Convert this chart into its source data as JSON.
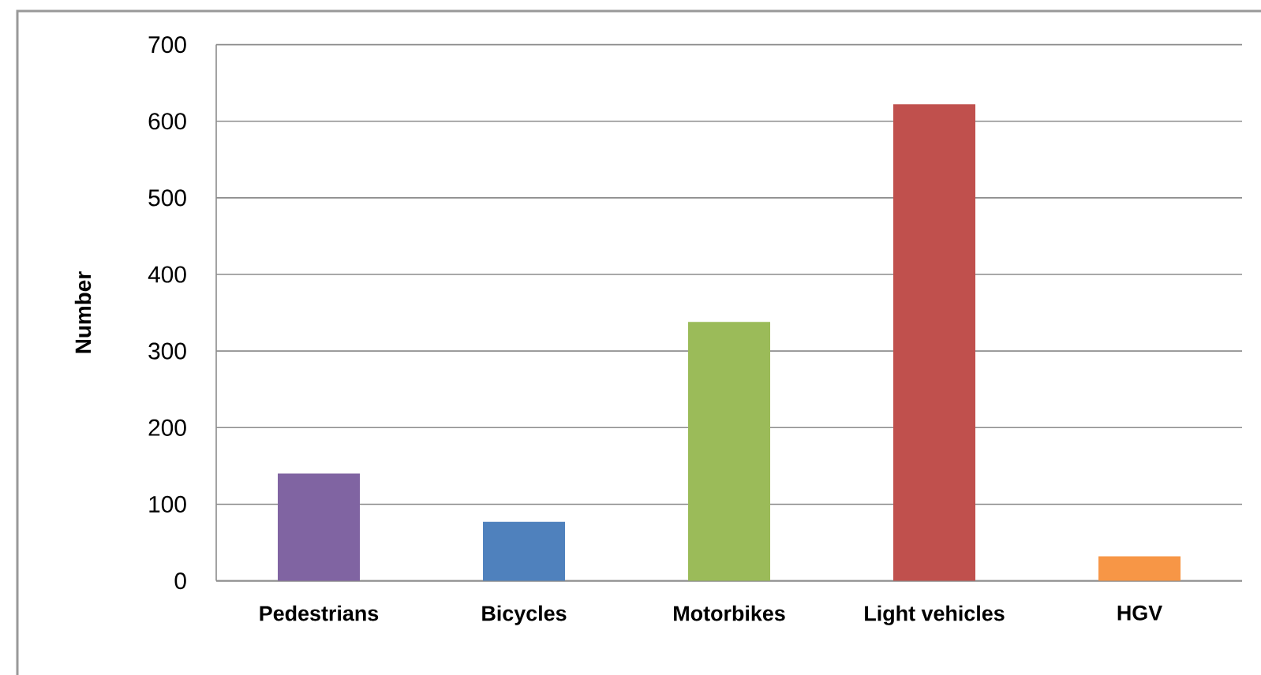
{
  "chart_data": {
    "type": "bar",
    "ylabel": "Number",
    "categories": [
      "Pedestrians",
      "Bicycles",
      "Motorbikes",
      "Light vehicles",
      "HGV"
    ],
    "values": [
      140,
      77,
      338,
      622,
      32
    ],
    "colors": [
      "#8064a2",
      "#4f81bd",
      "#9bbb59",
      "#c0504d",
      "#f79646"
    ],
    "ylim": [
      0,
      700
    ],
    "yticks": [
      0,
      100,
      200,
      300,
      400,
      500,
      600,
      700
    ],
    "grid": "y"
  }
}
